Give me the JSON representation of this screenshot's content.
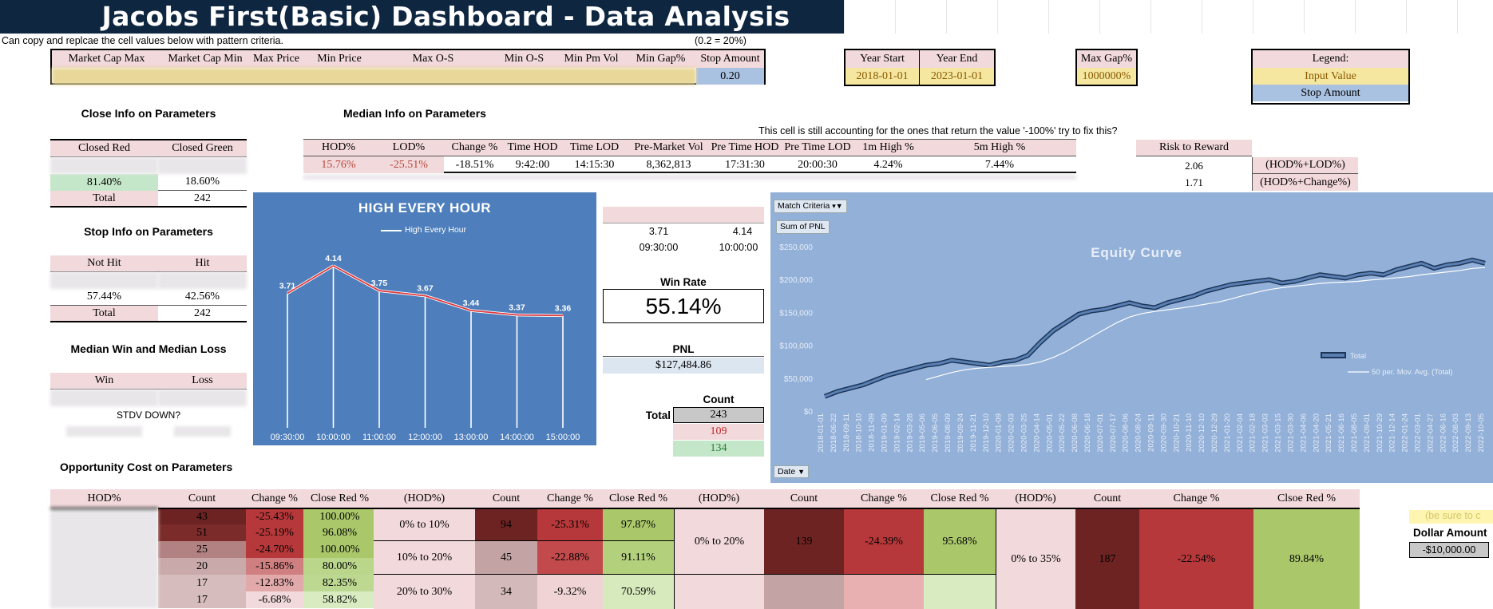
{
  "title": "Jacobs First(Basic) Dashboard - Data Analysis",
  "note": "Can copy and replcae the cell values below with pattern criteria.",
  "stop_note": "(0.2 = 20%)",
  "criteria": {
    "headers": [
      "Market Cap Max",
      "Market Cap Min",
      "Max Price",
      "Min Price",
      "Max O-S",
      "Min O-S",
      "Min Pm Vol",
      "Min Gap%",
      "Stop Amount"
    ],
    "stop_value": "0.20"
  },
  "years": {
    "start_label": "Year Start",
    "end_label": "Year End",
    "start": "2018-01-01",
    "end": "2023-01-01"
  },
  "max_gap": {
    "label": "Max Gap%",
    "value": "1000000%"
  },
  "legend": {
    "title": "Legend:",
    "input": "Input Value",
    "stop": "Stop Amount"
  },
  "close_info": {
    "title": "Close Info on Parameters",
    "red_label": "Closed Red",
    "green_label": "Closed Green",
    "red_pct": "81.40%",
    "green_pct": "18.60%",
    "total_label": "Total",
    "total": "242"
  },
  "stop_info": {
    "title": "Stop Info on Parameters",
    "not_hit_label": "Not Hit",
    "hit_label": "Hit",
    "not_hit_pct": "57.44%",
    "hit_pct": "42.56%",
    "total_label": "Total",
    "total": "242"
  },
  "median_wl": {
    "title": "Median Win and Median Loss",
    "win_label": "Win",
    "loss_label": "Loss",
    "stdv": "STDV DOWN?"
  },
  "median_info": {
    "title": "Median Info on Parameters",
    "warning": "This cell is still accounting for the ones that return the value '-100%' try to fix this?",
    "headers": [
      "HOD%",
      "LOD%",
      "Change %",
      "Time HOD",
      "Time LOD",
      "Pre-Market Vol",
      "Pre Time HOD",
      "Pre Time LOD",
      "1m High %",
      "5m High %"
    ],
    "values": [
      "15.76%",
      "-25.51%",
      "-18.51%",
      "9:42:00",
      "14:15:30",
      "8,362,813",
      "17:31:30",
      "20:00:30",
      "4.24%",
      "7.44%"
    ]
  },
  "risk_reward": {
    "label": "Risk to Reward",
    "rows": [
      {
        "value": "2.06",
        "formula": "(HOD%+LOD%)"
      },
      {
        "value": "1.71",
        "formula": "(HOD%+Change%)"
      }
    ]
  },
  "chart_data": {
    "type": "line",
    "title": "HIGH EVERY HOUR",
    "legend": "High Every Hour",
    "categories": [
      "09:30:00",
      "10:00:00",
      "11:00:00",
      "12:00:00",
      "13:00:00",
      "14:00:00",
      "15:00:00"
    ],
    "values": [
      3.71,
      4.14,
      3.75,
      3.67,
      3.44,
      3.37,
      3.36
    ],
    "labels": [
      "3.71",
      "4.14",
      "3.75",
      "3.67",
      "3.44",
      "3.37",
      "3.36"
    ]
  },
  "mid": {
    "v1": "3.71",
    "v2": "4.14",
    "t1": "09:30:00",
    "t2": "10:00:00",
    "win_rate_label": "Win Rate",
    "win_rate": "55.14%",
    "pnl_label": "PNL",
    "pnl": "$127,484.86",
    "count_label": "Count",
    "total_label": "Total",
    "count_total": "243",
    "count_red": "109",
    "count_green": "134"
  },
  "equity": {
    "filter_label": "Match Criteria",
    "sum_label": "Sum of PNL",
    "title": "Equity Curve",
    "y_ticks": [
      "$250,000",
      "$200,000",
      "$150,000",
      "$100,000",
      "$50,000",
      "$0"
    ],
    "x_dates": [
      "2018-01-01",
      "2018-06-22",
      "2018-09-11",
      "2018-10-10",
      "2018-11-09",
      "2019-01-09",
      "2019-02-14",
      "2019-03-28",
      "2019-05-06",
      "2019-06-05",
      "2019-08-09",
      "2019-09-24",
      "2019-11-21",
      "2019-12-10",
      "2020-01-09",
      "2020-02-03",
      "2020-03-25",
      "2020-04-14",
      "2020-05-01",
      "2020-05-22",
      "2020-06-08",
      "2020-06-18",
      "2020-07-01",
      "2020-07-17",
      "2020-08-06",
      "2020-08-24",
      "2020-09-11",
      "2020-09-30",
      "2020-10-21",
      "2020-11-10",
      "2020-12-10",
      "2020-12-29",
      "2021-01-20",
      "2021-02-04",
      "2021-02-18",
      "2021-03-03",
      "2021-03-15",
      "2021-03-30",
      "2021-04-06",
      "2021-04-20",
      "2021-05-21",
      "2021-06-16",
      "2021-08-05",
      "2021-09-01",
      "2021-10-29",
      "2021-12-14",
      "2022-01-24",
      "2022-03-01",
      "2022-04-27",
      "2022-06-16",
      "2022-08-03",
      "2022-09-13",
      "2022-10-05"
    ],
    "legend_total": "Total",
    "legend_ma": "50 per. Mov. Avg. (Total)",
    "date_btn": "Date"
  },
  "opp_cost": {
    "title": "Opportunity Cost on Parameters",
    "t1": {
      "headers": [
        "HOD%",
        "Count",
        "Change %",
        "Close Red %"
      ],
      "rows": [
        {
          "count": "43",
          "change": "-25.43%",
          "red": "100.00%"
        },
        {
          "count": "51",
          "change": "-25.19%",
          "red": "96.08%"
        },
        {
          "count": "25",
          "change": "-24.70%",
          "red": "100.00%"
        },
        {
          "count": "20",
          "change": "-15.86%",
          "red": "80.00%"
        },
        {
          "count": "17",
          "change": "-12.83%",
          "red": "82.35%"
        },
        {
          "count": "17",
          "change": "-6.68%",
          "red": "58.82%"
        }
      ]
    },
    "t2": {
      "headers": [
        "(HOD%)",
        "Count",
        "Change %",
        "Close Red %"
      ],
      "rows": [
        {
          "range": "0% to 10%",
          "count": "94",
          "change": "-25.31%",
          "red": "97.87%"
        },
        {
          "range": "10% to 20%",
          "count": "45",
          "change": "-22.88%",
          "red": "91.11%"
        },
        {
          "range": "20% to 30%",
          "count": "34",
          "change": "-9.32%",
          "red": "70.59%"
        }
      ]
    },
    "t3": {
      "headers": [
        "(HOD%)",
        "Count",
        "Change %",
        "Close Red %"
      ],
      "row": {
        "range": "0% to 20%",
        "count": "139",
        "change": "-24.39%",
        "red": "95.68%"
      }
    },
    "t4": {
      "headers": [
        "(HOD%)",
        "Count",
        "Change %",
        "Clsoe Red %"
      ],
      "row": {
        "range": "0% to 35%",
        "count": "187",
        "change": "-22.54%",
        "red": "89.84%"
      }
    }
  },
  "dollar": {
    "note": "(be sure to c",
    "label": "Dollar Amount",
    "value": "-$10,000.00"
  }
}
